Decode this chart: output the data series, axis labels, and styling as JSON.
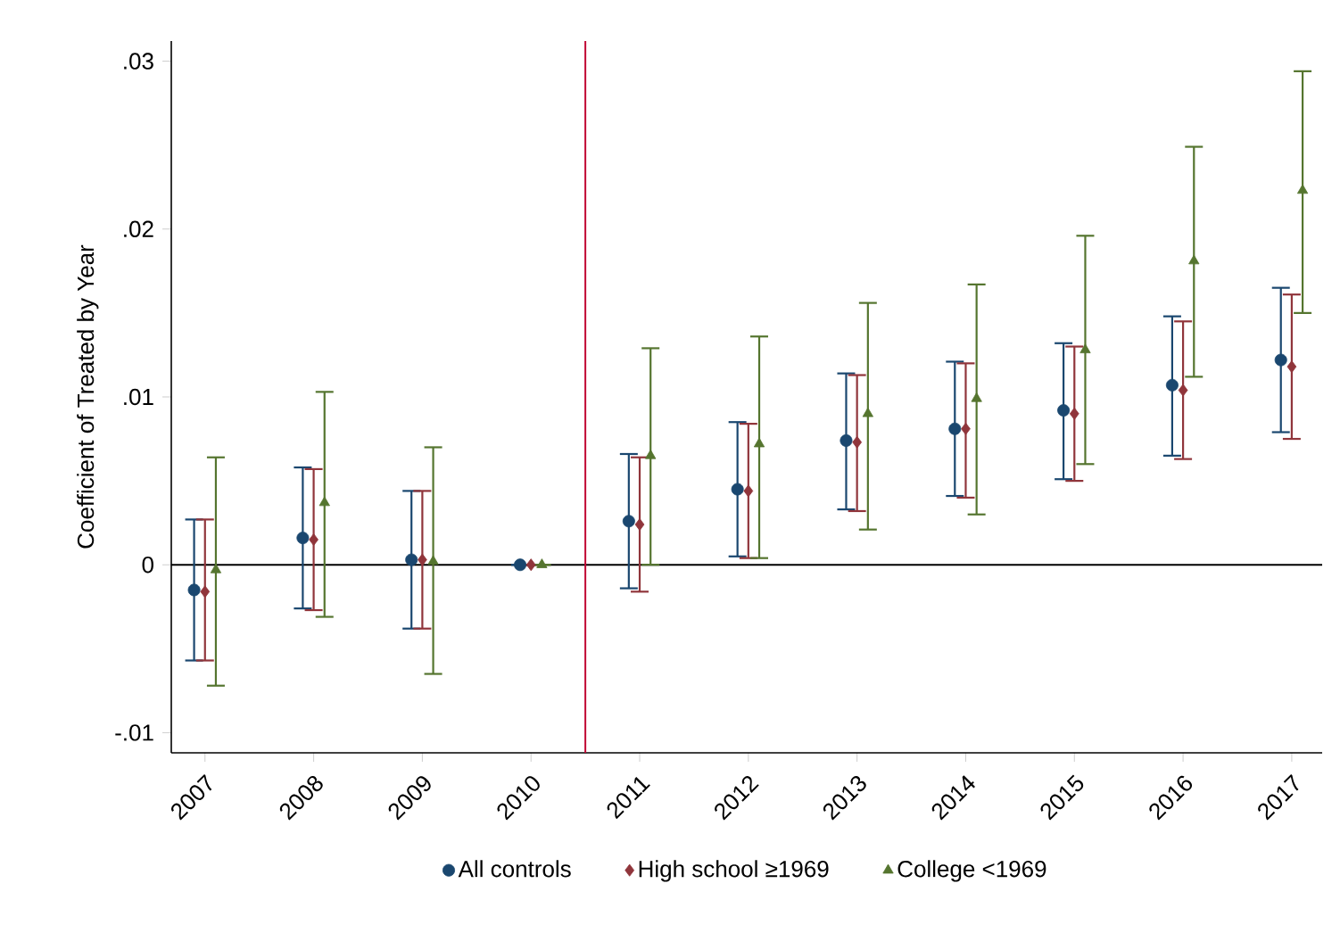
{
  "chart_data": {
    "type": "scatter",
    "ylabel": "Coefficient of Treated by Year",
    "xlim": [
      2006.69,
      2017.28
    ],
    "xticks": [
      2007,
      2008,
      2009,
      2010,
      2011,
      2012,
      2013,
      2014,
      2015,
      2016,
      2017
    ],
    "ylim": [
      -0.0112,
      0.0312
    ],
    "yticks": [
      {
        "value": -0.01,
        "label": "-.01"
      },
      0,
      {
        "value": 0.01,
        "label": ".01"
      },
      {
        "value": 0.02,
        "label": ".02"
      },
      {
        "value": 0.03,
        "label": ".03"
      }
    ],
    "grid": false,
    "legend": "bottom",
    "ref_lines": [
      {
        "axis": "y",
        "value": 0,
        "color": "#000000"
      },
      {
        "axis": "x",
        "value": 2010.5,
        "color": "#c10534"
      }
    ],
    "series": [
      {
        "name": "All controls",
        "color": "#1a476f",
        "marker": "circle",
        "x": [
          2006.9,
          2007.9,
          2008.9,
          2009.9,
          2010.9,
          2011.9,
          2012.9,
          2013.9,
          2014.9,
          2015.9,
          2016.9
        ],
        "values": [
          -0.0015,
          0.0016,
          0.0003,
          0,
          0.0026,
          0.0045,
          0.0074,
          0.0081,
          0.0092,
          0.0107,
          0.0122
        ],
        "errors": [
          [
            -0.0057,
            0.0027
          ],
          [
            -0.0026,
            0.0058
          ],
          [
            -0.0038,
            0.0044
          ],
          null,
          [
            -0.0014,
            0.0066
          ],
          [
            0.0005,
            0.0085
          ],
          [
            0.0033,
            0.0114
          ],
          [
            0.0041,
            0.0121
          ],
          [
            0.0051,
            0.0132
          ],
          [
            0.0065,
            0.0148
          ],
          [
            0.0079,
            0.0165
          ]
        ]
      },
      {
        "name": "High school ≥1969",
        "color": "#90353b",
        "marker": "diamond",
        "x": [
          2007,
          2008,
          2009,
          2010,
          2011,
          2012,
          2013,
          2014,
          2015,
          2016,
          2017
        ],
        "values": [
          -0.0016,
          0.0015,
          0.0003,
          0,
          0.0024,
          0.0044,
          0.0073,
          0.0081,
          0.009,
          0.0104,
          0.0118
        ],
        "errors": [
          [
            -0.0057,
            0.0027
          ],
          [
            -0.0027,
            0.0057
          ],
          [
            -0.0038,
            0.0044
          ],
          null,
          [
            -0.0016,
            0.0064
          ],
          [
            0.0004,
            0.0084
          ],
          [
            0.0032,
            0.0113
          ],
          [
            0.004,
            0.012
          ],
          [
            0.005,
            0.013
          ],
          [
            0.0063,
            0.0145
          ],
          [
            0.0075,
            0.0161
          ]
        ]
      },
      {
        "name": "College <1969",
        "color": "#55752f",
        "marker": "triangle",
        "x": [
          2007.1,
          2008.1,
          2009.1,
          2010.1,
          2011.1,
          2012.1,
          2013.1,
          2014.1,
          2015.1,
          2016.1,
          2017.1
        ],
        "values": [
          -0.0003,
          0.0037,
          0.0002,
          0,
          0.0065,
          0.0072,
          0.009,
          0.0099,
          0.0128,
          0.0181,
          0.0223
        ],
        "errors": [
          [
            -0.0072,
            0.0064
          ],
          [
            -0.0031,
            0.0103
          ],
          [
            -0.0065,
            0.007
          ],
          null,
          [
            0,
            0.0129
          ],
          [
            0.0004,
            0.0136
          ],
          [
            0.0021,
            0.0156
          ],
          [
            0.003,
            0.0167
          ],
          [
            0.006,
            0.0196
          ],
          [
            0.0112,
            0.0249
          ],
          [
            0.015,
            0.0294
          ]
        ]
      }
    ]
  }
}
